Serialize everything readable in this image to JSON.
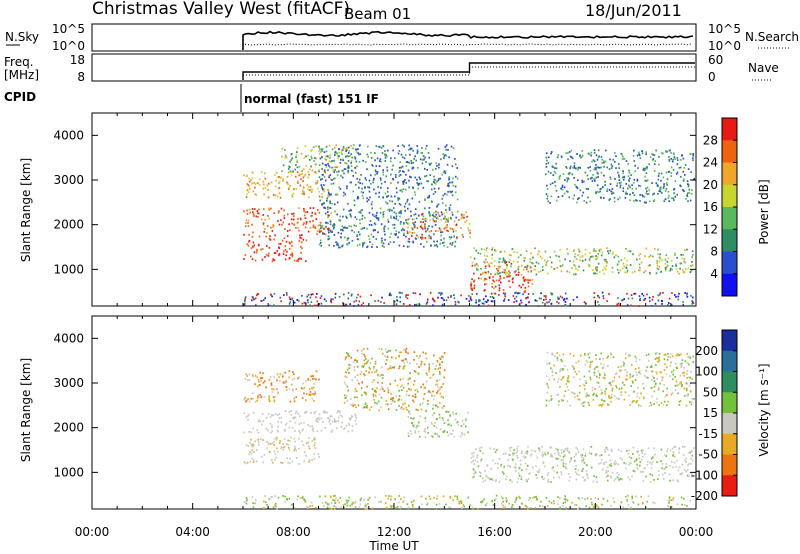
{
  "title": "Christmas Valley West (fitACF)",
  "beam": "Beam 01",
  "date": "18/Jun/2011",
  "colors": {
    "axis": "#000000",
    "line": "#000000"
  },
  "header": {
    "nsky": {
      "label": "N.Sky",
      "ticks": [
        "10^5",
        "10^0"
      ],
      "right_label": "N.Search",
      "right_ticks": [
        "10^5",
        "10^0"
      ]
    },
    "freq": {
      "label_line1": "Freq.",
      "label_line2": "[MHz]",
      "ticks": [
        "18",
        "8"
      ],
      "right_label": "Nave",
      "right_ticks": [
        "60",
        "0"
      ]
    },
    "cpid": {
      "label": "CPID",
      "program": "normal (fast) 151 IF"
    }
  },
  "chart_data": [
    {
      "type": "heatmap",
      "name": "power-panel",
      "ylabel": "Slant Range [km]",
      "yticks": [
        1000,
        2000,
        3000,
        4000
      ],
      "ylim": [
        180,
        4500
      ],
      "x_ticks": [
        "00:00",
        "04:00",
        "08:00",
        "12:00",
        "16:00",
        "20:00",
        "00:00"
      ],
      "xlim_hours": [
        0,
        24
      ],
      "data_start_hour": 6.0,
      "colorbar": {
        "label": "Power [dB]",
        "ticks": [
          "4",
          "8",
          "12",
          "16",
          "20",
          "24",
          "28"
        ],
        "colors": [
          "#1010f0",
          "#2a4ed0",
          "#2f8d63",
          "#59b95c",
          "#c7d62c",
          "#f0a62a",
          "#ee6210",
          "#e81a14"
        ]
      },
      "scatter_regions": [
        {
          "t": [
            6.0,
            8.5
          ],
          "r": [
            1200,
            1800
          ],
          "levels": [
            6,
            7,
            7,
            6
          ]
        },
        {
          "t": [
            6.0,
            9.5
          ],
          "r": [
            1800,
            2400
          ],
          "levels": [
            5,
            6,
            7,
            6
          ]
        },
        {
          "t": [
            6.0,
            9.5
          ],
          "r": [
            2600,
            3200
          ],
          "levels": [
            5,
            5,
            6,
            4
          ]
        },
        {
          "t": [
            7.5,
            10.5
          ],
          "r": [
            3200,
            3800
          ],
          "levels": [
            3,
            4,
            5,
            2
          ]
        },
        {
          "t": [
            9.0,
            14.5
          ],
          "r": [
            1500,
            3800
          ],
          "levels": [
            1,
            1,
            2,
            3
          ]
        },
        {
          "t": [
            12.5,
            15.0
          ],
          "r": [
            1700,
            2300
          ],
          "levels": [
            4,
            5,
            6,
            7
          ]
        },
        {
          "t": [
            15.0,
            17.5
          ],
          "r": [
            500,
            1200
          ],
          "levels": [
            6,
            7,
            7,
            5
          ]
        },
        {
          "t": [
            15.0,
            23.9
          ],
          "r": [
            900,
            1500
          ],
          "levels": [
            2,
            3,
            4,
            5
          ]
        },
        {
          "t": [
            18.0,
            23.9
          ],
          "r": [
            2500,
            3700
          ],
          "levels": [
            1,
            2,
            3
          ]
        },
        {
          "t": [
            6.0,
            23.9
          ],
          "r": [
            200,
            500
          ],
          "levels": [
            0,
            1,
            2,
            7
          ]
        }
      ]
    },
    {
      "type": "heatmap",
      "name": "velocity-panel",
      "ylabel": "Slant Range [km]",
      "xlabel": "Time UT",
      "yticks": [
        1000,
        2000,
        3000,
        4000
      ],
      "ylim": [
        180,
        4500
      ],
      "x_ticks": [
        "00:00",
        "04:00",
        "08:00",
        "12:00",
        "16:00",
        "20:00",
        "00:00"
      ],
      "xlim_hours": [
        0,
        24
      ],
      "data_start_hour": 6.0,
      "colorbar": {
        "label": "Velocity [m s⁻¹]",
        "ticks": [
          "200",
          "100",
          "50",
          "15",
          "-15",
          "-50",
          "-100",
          "-200"
        ],
        "colors": [
          "#1a2f9e",
          "#2a6f9a",
          "#2f8e5f",
          "#6fc23a",
          "#c8c8c0",
          "#e8aa22",
          "#ee7410",
          "#e81e12"
        ]
      },
      "scatter_regions": [
        {
          "t": [
            6.0,
            9.0
          ],
          "r": [
            1200,
            1800
          ],
          "levels": [
            4,
            4,
            4,
            5
          ]
        },
        {
          "t": [
            6.0,
            10.5
          ],
          "r": [
            1900,
            2400
          ],
          "levels": [
            4,
            4,
            4
          ]
        },
        {
          "t": [
            6.0,
            9.0
          ],
          "r": [
            2600,
            3300
          ],
          "levels": [
            4,
            5,
            6
          ]
        },
        {
          "t": [
            10.0,
            14.0
          ],
          "r": [
            2400,
            3800
          ],
          "levels": [
            3,
            4,
            5,
            6
          ]
        },
        {
          "t": [
            12.5,
            15.0
          ],
          "r": [
            1800,
            2400
          ],
          "levels": [
            4,
            3
          ]
        },
        {
          "t": [
            15.0,
            23.9
          ],
          "r": [
            800,
            1600
          ],
          "levels": [
            4,
            4,
            4,
            3
          ]
        },
        {
          "t": [
            6.0,
            23.9
          ],
          "r": [
            200,
            500
          ],
          "levels": [
            3,
            3,
            4,
            5
          ]
        },
        {
          "t": [
            18.0,
            23.9
          ],
          "r": [
            2500,
            3700
          ],
          "levels": [
            4,
            3,
            5
          ]
        }
      ]
    }
  ]
}
